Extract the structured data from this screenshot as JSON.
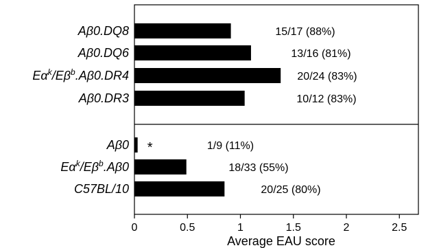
{
  "chart_data": {
    "type": "bar",
    "orientation": "horizontal",
    "xlabel": "Average EAU score",
    "xlim": [
      0,
      2.8
    ],
    "xticks": [
      "0",
      "0.5",
      "1",
      "1.5",
      "2",
      "2.5"
    ],
    "grid": false,
    "panels": [
      {
        "categories": [
          "Aβ0.DQ8",
          "Aβ0.DQ6",
          "Eα",
          "Aβ0.DR3"
        ],
        "category_parts": [
          null,
          null,
          {
            "a": "Eα",
            "a_sup": "k",
            "b": "/Eβ",
            "b_sup": "b",
            "c": ".Aβ0.DR4"
          },
          null
        ],
        "values": [
          0.91,
          1.1,
          1.38,
          1.04
        ],
        "annotations": [
          "15/17 (88%)",
          "13/16 (81%)",
          "20/24 (83%)",
          "10/12 (83%)"
        ]
      },
      {
        "categories": [
          "Aβ0",
          "Eα",
          "C57BL/10"
        ],
        "category_parts": [
          null,
          {
            "a": "Eα",
            "a_sup": "k",
            "b": "/Eβ",
            "b_sup": "b",
            "c": ".Aβ0"
          },
          null
        ],
        "values": [
          0.03,
          0.49,
          0.85
        ],
        "annotations": [
          "1/9 (11%)",
          "18/33 (55%)",
          "20/25 (80%)"
        ],
        "markers": [
          "*",
          "",
          ""
        ]
      }
    ]
  }
}
